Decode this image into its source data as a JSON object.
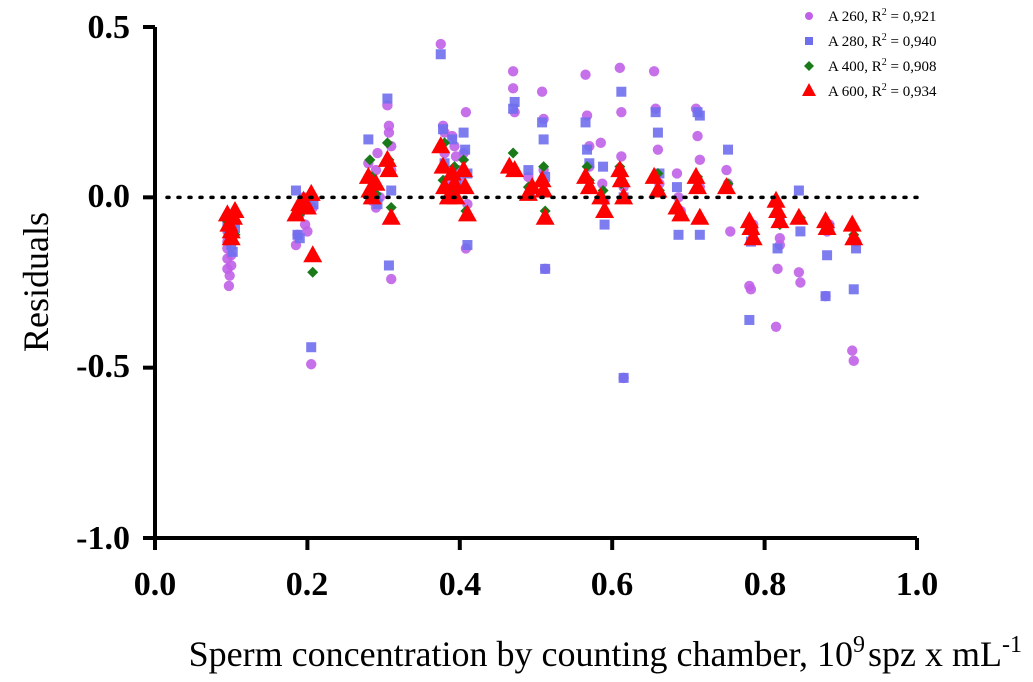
{
  "chart_data": {
    "type": "scatter",
    "title": "",
    "xlabel": {
      "main": "Sperm concentration by counting chamber, 10",
      "sup1": "9",
      "mid": "spz x mL",
      "sup2": "-1"
    },
    "ylabel": "Residuals",
    "xlim": [
      0.0,
      1.0
    ],
    "ylim": [
      -1.0,
      0.5
    ],
    "x_ticks": [
      "0.0",
      "0.2",
      "0.4",
      "0.6",
      "0.8",
      "1.0"
    ],
    "y_ticks": [
      "0.5",
      "0.0",
      "-0.5",
      "-1.0"
    ],
    "reference_line": 0.0,
    "grid": false,
    "legend_position": "top-right",
    "series": [
      {
        "name": "A 260, R² = 0,921",
        "legend": {
          "prefix": "A 260, R",
          "sup": "2",
          "suffix": " = 0,921"
        },
        "marker": "circle",
        "color": "#c060e8",
        "points": [
          [
            0.095,
            -0.15
          ],
          [
            0.095,
            -0.18
          ],
          [
            0.095,
            -0.21
          ],
          [
            0.095,
            -0.13
          ],
          [
            0.095,
            -0.1
          ],
          [
            0.097,
            -0.26
          ],
          [
            0.098,
            -0.23
          ],
          [
            0.1,
            -0.2
          ],
          [
            0.1,
            -0.17
          ],
          [
            0.1,
            -0.12
          ],
          [
            0.102,
            -0.08
          ],
          [
            0.185,
            -0.14
          ],
          [
            0.187,
            -0.11
          ],
          [
            0.19,
            -0.05
          ],
          [
            0.192,
            -0.02
          ],
          [
            0.195,
            0.0
          ],
          [
            0.197,
            -0.08
          ],
          [
            0.2,
            -0.1
          ],
          [
            0.205,
            -0.49
          ],
          [
            0.207,
            -0.03
          ],
          [
            0.28,
            0.1
          ],
          [
            0.282,
            0.06
          ],
          [
            0.285,
            0.03
          ],
          [
            0.285,
            -0.01
          ],
          [
            0.29,
            -0.03
          ],
          [
            0.29,
            0.08
          ],
          [
            0.292,
            0.13
          ],
          [
            0.295,
            0.0
          ],
          [
            0.305,
            0.27
          ],
          [
            0.307,
            0.21
          ],
          [
            0.307,
            0.19
          ],
          [
            0.31,
            0.15
          ],
          [
            0.31,
            -0.24
          ],
          [
            0.31,
            0.08
          ],
          [
            0.375,
            0.45
          ],
          [
            0.378,
            0.21
          ],
          [
            0.38,
            0.19
          ],
          [
            0.38,
            0.13
          ],
          [
            0.382,
            0.05
          ],
          [
            0.385,
            0.03
          ],
          [
            0.39,
            0.18
          ],
          [
            0.393,
            0.15
          ],
          [
            0.395,
            0.12
          ],
          [
            0.398,
            0.08
          ],
          [
            0.4,
            0.05
          ],
          [
            0.405,
            0.13
          ],
          [
            0.408,
            0.25
          ],
          [
            0.408,
            -0.15
          ],
          [
            0.41,
            -0.02
          ],
          [
            0.47,
            0.37
          ],
          [
            0.47,
            0.32
          ],
          [
            0.472,
            0.25
          ],
          [
            0.49,
            0.06
          ],
          [
            0.492,
            0.03
          ],
          [
            0.508,
            0.31
          ],
          [
            0.51,
            0.23
          ],
          [
            0.51,
            0.08
          ],
          [
            0.512,
            -0.21
          ],
          [
            0.565,
            0.36
          ],
          [
            0.567,
            0.24
          ],
          [
            0.57,
            0.15
          ],
          [
            0.57,
            0.09
          ],
          [
            0.585,
            0.16
          ],
          [
            0.587,
            0.04
          ],
          [
            0.59,
            -0.01
          ],
          [
            0.61,
            0.38
          ],
          [
            0.612,
            0.25
          ],
          [
            0.612,
            0.12
          ],
          [
            0.615,
            -0.53
          ],
          [
            0.615,
            0.03
          ],
          [
            0.655,
            0.37
          ],
          [
            0.657,
            0.26
          ],
          [
            0.66,
            0.14
          ],
          [
            0.662,
            0.04
          ],
          [
            0.685,
            0.07
          ],
          [
            0.687,
            0.0
          ],
          [
            0.69,
            -0.04
          ],
          [
            0.71,
            0.26
          ],
          [
            0.712,
            0.18
          ],
          [
            0.715,
            0.11
          ],
          [
            0.715,
            0.03
          ],
          [
            0.75,
            0.08
          ],
          [
            0.752,
            0.04
          ],
          [
            0.755,
            -0.1
          ],
          [
            0.78,
            -0.26
          ],
          [
            0.782,
            -0.27
          ],
          [
            0.785,
            -0.08
          ],
          [
            0.815,
            -0.38
          ],
          [
            0.817,
            -0.21
          ],
          [
            0.82,
            -0.14
          ],
          [
            0.82,
            -0.12
          ],
          [
            0.845,
            -0.22
          ],
          [
            0.847,
            -0.25
          ],
          [
            0.88,
            -0.29
          ],
          [
            0.882,
            -0.1
          ],
          [
            0.885,
            -0.08
          ],
          [
            0.915,
            -0.45
          ],
          [
            0.917,
            -0.48
          ],
          [
            0.92,
            -0.13
          ]
        ]
      },
      {
        "name": "A 280, R² = 0,940",
        "legend": {
          "prefix": "A 280, R",
          "sup": "2",
          "suffix": " = 0,940"
        },
        "marker": "square",
        "color": "#6f6fee",
        "points": [
          [
            0.095,
            -0.07
          ],
          [
            0.097,
            -0.1
          ],
          [
            0.1,
            -0.12
          ],
          [
            0.1,
            -0.14
          ],
          [
            0.102,
            -0.16
          ],
          [
            0.105,
            -0.09
          ],
          [
            0.185,
            0.02
          ],
          [
            0.187,
            -0.11
          ],
          [
            0.19,
            -0.12
          ],
          [
            0.2,
            -0.01
          ],
          [
            0.205,
            -0.44
          ],
          [
            0.208,
            -0.02
          ],
          [
            0.28,
            0.17
          ],
          [
            0.285,
            0.02
          ],
          [
            0.29,
            0.0
          ],
          [
            0.292,
            -0.02
          ],
          [
            0.305,
            0.29
          ],
          [
            0.307,
            -0.2
          ],
          [
            0.31,
            0.02
          ],
          [
            0.375,
            0.42
          ],
          [
            0.378,
            0.2
          ],
          [
            0.38,
            0.1
          ],
          [
            0.39,
            0.17
          ],
          [
            0.393,
            0.01
          ],
          [
            0.395,
            0.05
          ],
          [
            0.405,
            0.19
          ],
          [
            0.407,
            0.14
          ],
          [
            0.41,
            -0.14
          ],
          [
            0.41,
            0.07
          ],
          [
            0.47,
            0.26
          ],
          [
            0.472,
            0.28
          ],
          [
            0.49,
            0.08
          ],
          [
            0.492,
            0.02
          ],
          [
            0.508,
            0.22
          ],
          [
            0.51,
            0.17
          ],
          [
            0.512,
            -0.21
          ],
          [
            0.512,
            0.06
          ],
          [
            0.565,
            0.22
          ],
          [
            0.567,
            0.14
          ],
          [
            0.57,
            0.1
          ],
          [
            0.588,
            0.09
          ],
          [
            0.59,
            -0.08
          ],
          [
            0.612,
            0.31
          ],
          [
            0.615,
            -0.53
          ],
          [
            0.615,
            0.0
          ],
          [
            0.657,
            0.25
          ],
          [
            0.66,
            0.19
          ],
          [
            0.662,
            0.07
          ],
          [
            0.685,
            0.03
          ],
          [
            0.687,
            -0.11
          ],
          [
            0.712,
            0.25
          ],
          [
            0.715,
            0.24
          ],
          [
            0.715,
            -0.11
          ],
          [
            0.752,
            0.14
          ],
          [
            0.78,
            -0.36
          ],
          [
            0.782,
            -0.13
          ],
          [
            0.785,
            -0.1
          ],
          [
            0.817,
            -0.15
          ],
          [
            0.82,
            -0.07
          ],
          [
            0.845,
            0.02
          ],
          [
            0.847,
            -0.1
          ],
          [
            0.88,
            -0.29
          ],
          [
            0.882,
            -0.17
          ],
          [
            0.885,
            -0.09
          ],
          [
            0.917,
            -0.27
          ],
          [
            0.92,
            -0.15
          ]
        ]
      },
      {
        "name": "A 400, R² = 0,908",
        "legend": {
          "prefix": "A 400, R",
          "sup": "2",
          "suffix": " = 0,908"
        },
        "marker": "diamond",
        "color": "#1a7a1a",
        "points": [
          [
            0.095,
            -0.07
          ],
          [
            0.1,
            -0.09
          ],
          [
            0.102,
            -0.05
          ],
          [
            0.105,
            -0.11
          ],
          [
            0.19,
            -0.05
          ],
          [
            0.195,
            -0.02
          ],
          [
            0.205,
            0.01
          ],
          [
            0.207,
            -0.22
          ],
          [
            0.282,
            0.11
          ],
          [
            0.285,
            0.06
          ],
          [
            0.29,
            0.01
          ],
          [
            0.305,
            0.16
          ],
          [
            0.307,
            0.11
          ],
          [
            0.31,
            -0.03
          ],
          [
            0.378,
            0.05
          ],
          [
            0.38,
            0.16
          ],
          [
            0.393,
            0.09
          ],
          [
            0.395,
            0.02
          ],
          [
            0.405,
            0.11
          ],
          [
            0.408,
            -0.04
          ],
          [
            0.47,
            0.13
          ],
          [
            0.49,
            0.03
          ],
          [
            0.51,
            0.09
          ],
          [
            0.512,
            -0.04
          ],
          [
            0.567,
            0.09
          ],
          [
            0.57,
            0.05
          ],
          [
            0.588,
            0.02
          ],
          [
            0.61,
            0.09
          ],
          [
            0.612,
            0.04
          ],
          [
            0.66,
            0.07
          ],
          [
            0.662,
            0.02
          ],
          [
            0.687,
            -0.04
          ],
          [
            0.712,
            0.06
          ],
          [
            0.715,
            -0.06
          ],
          [
            0.752,
            0.04
          ],
          [
            0.782,
            -0.08
          ],
          [
            0.785,
            -0.12
          ],
          [
            0.817,
            -0.04
          ],
          [
            0.82,
            -0.08
          ],
          [
            0.847,
            -0.06
          ],
          [
            0.882,
            -0.09
          ],
          [
            0.917,
            -0.11
          ]
        ]
      },
      {
        "name": "A 600, R² = 0,934",
        "legend": {
          "prefix": "A 600, R",
          "sup": "2",
          "suffix": " = 0,934"
        },
        "marker": "triangle",
        "color": "#ff0000",
        "points": [
          [
            0.095,
            -0.05
          ],
          [
            0.097,
            -0.08
          ],
          [
            0.1,
            -0.1
          ],
          [
            0.1,
            -0.12
          ],
          [
            0.103,
            -0.06
          ],
          [
            0.105,
            -0.04
          ],
          [
            0.185,
            -0.05
          ],
          [
            0.19,
            -0.02
          ],
          [
            0.195,
            -0.01
          ],
          [
            0.2,
            -0.03
          ],
          [
            0.205,
            0.01
          ],
          [
            0.207,
            -0.17
          ],
          [
            0.28,
            0.06
          ],
          [
            0.282,
            0.02
          ],
          [
            0.285,
            0.0
          ],
          [
            0.29,
            0.04
          ],
          [
            0.305,
            0.11
          ],
          [
            0.307,
            0.08
          ],
          [
            0.31,
            -0.06
          ],
          [
            0.375,
            0.15
          ],
          [
            0.378,
            0.09
          ],
          [
            0.38,
            0.03
          ],
          [
            0.385,
            0.0
          ],
          [
            0.39,
            0.07
          ],
          [
            0.393,
            0.04
          ],
          [
            0.395,
            0.0
          ],
          [
            0.405,
            0.08
          ],
          [
            0.407,
            0.03
          ],
          [
            0.41,
            -0.05
          ],
          [
            0.465,
            0.09
          ],
          [
            0.472,
            0.08
          ],
          [
            0.49,
            0.01
          ],
          [
            0.495,
            0.03
          ],
          [
            0.508,
            0.05
          ],
          [
            0.51,
            0.02
          ],
          [
            0.512,
            -0.06
          ],
          [
            0.565,
            0.06
          ],
          [
            0.57,
            0.03
          ],
          [
            0.585,
            0.0
          ],
          [
            0.59,
            -0.04
          ],
          [
            0.61,
            0.08
          ],
          [
            0.612,
            0.05
          ],
          [
            0.615,
            0.0
          ],
          [
            0.655,
            0.06
          ],
          [
            0.66,
            0.02
          ],
          [
            0.685,
            -0.03
          ],
          [
            0.69,
            -0.05
          ],
          [
            0.71,
            0.06
          ],
          [
            0.712,
            0.03
          ],
          [
            0.715,
            -0.06
          ],
          [
            0.75,
            0.03
          ],
          [
            0.78,
            -0.07
          ],
          [
            0.782,
            -0.09
          ],
          [
            0.785,
            -0.12
          ],
          [
            0.815,
            -0.01
          ],
          [
            0.817,
            -0.04
          ],
          [
            0.82,
            -0.07
          ],
          [
            0.845,
            -0.06
          ],
          [
            0.88,
            -0.07
          ],
          [
            0.882,
            -0.09
          ],
          [
            0.915,
            -0.08
          ],
          [
            0.917,
            -0.12
          ]
        ]
      }
    ]
  }
}
